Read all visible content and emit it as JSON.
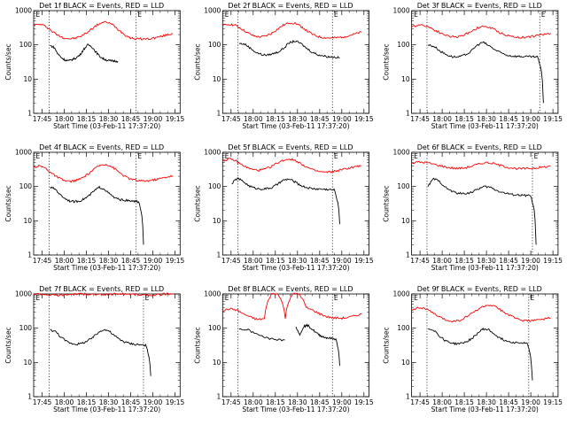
{
  "chart_data": [
    {
      "type": "line",
      "title": "Det 1f BLACK = Events, RED = LLD",
      "xlabel": "Start Time (03-Feb-11 17:37:20)",
      "ylabel": "Counts/sec",
      "y_scale": "log",
      "ylim": [
        1,
        1000
      ],
      "xlim": [
        0,
        40
      ],
      "x_ticks": [
        "17:45",
        "18:00",
        "18:15",
        "18:30",
        "18:45",
        "19:00",
        "19:15"
      ],
      "y_ticks": [
        "1",
        "10",
        "100",
        "1000"
      ],
      "markers": [
        {
          "label": "E",
          "x": 0
        },
        {
          "label": "E",
          "x": 28
        }
      ],
      "series": [
        {
          "color": "#ff0000",
          "y": [
            380,
            400,
            350,
            250,
            190,
            160,
            150,
            158,
            185,
            240,
            330,
            430,
            470,
            390,
            280,
            200,
            160,
            150,
            148,
            150,
            160,
            175,
            195,
            215
          ],
          "x_end": 38
        },
        {
          "color": "#000000",
          "y": [
            95,
            85,
            55,
            42,
            36,
            34,
            38,
            42,
            52,
            75,
            100,
            90,
            65,
            48,
            40,
            36,
            34,
            34,
            33
          ],
          "x_start": 4.5,
          "x_end": 23
        }
      ]
    },
    {
      "type": "line",
      "title": "Det 2f BLACK = Events, RED = LLD",
      "xlabel": "Start Time (03-Feb-11 17:37:20)",
      "ylabel": "Counts/sec",
      "y_scale": "log",
      "ylim": [
        1,
        1000
      ],
      "xlim": [
        0,
        40
      ],
      "x_ticks": [
        "17:45",
        "18:00",
        "18:15",
        "18:30",
        "18:45",
        "19:00",
        "19:15"
      ],
      "y_ticks": [
        "1",
        "10",
        "100",
        "1000"
      ],
      "markers": [
        {
          "label": "E",
          "x": 0
        },
        {
          "label": "E",
          "x": 30
        }
      ],
      "series": [
        {
          "color": "#ff0000",
          "y": [
            360,
            400,
            380,
            300,
            230,
            185,
            170,
            178,
            210,
            280,
            370,
            440,
            430,
            340,
            250,
            195,
            170,
            160,
            158,
            162,
            172,
            190,
            210,
            235
          ],
          "x_end": 38
        },
        {
          "color": "#000000",
          "y": [
            110,
            105,
            80,
            60,
            52,
            50,
            55,
            62,
            80,
            115,
            130,
            110,
            80,
            62,
            52,
            48,
            45,
            44,
            42
          ],
          "x_start": 4.5,
          "x_end": 32
        }
      ]
    },
    {
      "type": "line",
      "title": "Det 3f BLACK = Events, RED = LLD",
      "xlabel": "Start Time (03-Feb-11 17:37:20)",
      "ylabel": "Counts/sec",
      "y_scale": "log",
      "ylim": [
        1,
        1000
      ],
      "xlim": [
        0,
        40
      ],
      "x_ticks": [
        "17:45",
        "18:00",
        "18:15",
        "18:30",
        "18:45",
        "19:00",
        "19:15"
      ],
      "y_ticks": [
        "1",
        "10",
        "100",
        "1000"
      ],
      "markers": [
        {
          "label": "E",
          "x": 0
        },
        {
          "label": "E",
          "x": 35
        }
      ],
      "series": [
        {
          "color": "#ff0000",
          "y": [
            330,
            390,
            360,
            280,
            220,
            180,
            170,
            185,
            240,
            310,
            350,
            300,
            230,
            190,
            170,
            165,
            172,
            185,
            200,
            220
          ],
          "x_end": 38
        },
        {
          "color": "#000000",
          "y": [
            100,
            90,
            65,
            52,
            45,
            44,
            50,
            62,
            95,
            120,
            95,
            72,
            58,
            50,
            47,
            46,
            45,
            45,
            44,
            2
          ],
          "x_start": 4.5,
          "x_end": 36
        }
      ]
    },
    {
      "type": "line",
      "title": "Det 4f BLACK = Events, RED = LLD",
      "xlabel": "Start Time (03-Feb-11 17:37:20)",
      "ylabel": "Counts/sec",
      "y_scale": "log",
      "ylim": [
        1,
        1000
      ],
      "xlim": [
        0,
        40
      ],
      "x_ticks": [
        "17:45",
        "18:00",
        "18:15",
        "18:30",
        "18:45",
        "19:00",
        "19:15"
      ],
      "y_ticks": [
        "1",
        "10",
        "100",
        "1000"
      ],
      "markers": [
        {
          "label": "E",
          "x": 0
        },
        {
          "label": "E",
          "x": 28
        }
      ],
      "series": [
        {
          "color": "#ff0000",
          "y": [
            370,
            400,
            340,
            240,
            180,
            150,
            140,
            150,
            175,
            230,
            320,
            420,
            450,
            370,
            270,
            200,
            165,
            150,
            145,
            148,
            158,
            172,
            190,
            205
          ],
          "x_end": 38
        },
        {
          "color": "#000000",
          "y": [
            95,
            85,
            58,
            45,
            38,
            36,
            38,
            44,
            55,
            75,
            95,
            85,
            62,
            48,
            42,
            40,
            38,
            37,
            36,
            2
          ],
          "x_start": 4.5,
          "x_end": 30
        }
      ]
    },
    {
      "type": "line",
      "title": "Det 5f BLACK = Events, RED = LLD",
      "xlabel": "Start Time (03-Feb-11 17:37:20)",
      "ylabel": "Counts/sec",
      "y_scale": "log",
      "ylim": [
        1,
        1000
      ],
      "xlim": [
        0,
        40
      ],
      "x_ticks": [
        "17:45",
        "18:00",
        "18:15",
        "18:30",
        "18:45",
        "19:00",
        "19:15"
      ],
      "y_ticks": [
        "1",
        "10",
        "100",
        "1000"
      ],
      "markers": [
        {
          "label": "E",
          "x": 0
        },
        {
          "label": "E",
          "x": 30
        }
      ],
      "series": [
        {
          "color": "#ff0000",
          "y": [
            560,
            640,
            580,
            450,
            360,
            310,
            300,
            320,
            380,
            480,
            580,
            640,
            580,
            460,
            360,
            300,
            270,
            260,
            270,
            290,
            320,
            350,
            380,
            410
          ],
          "x_end": 38
        },
        {
          "color": "#000000",
          "y": [
            120,
            175,
            140,
            105,
            90,
            85,
            86,
            92,
            115,
            150,
            165,
            140,
            110,
            95,
            88,
            85,
            84,
            82,
            80,
            8
          ],
          "x_start": 2.5,
          "x_end": 32
        }
      ]
    },
    {
      "type": "line",
      "title": "Det 6f BLACK = Events, RED = LLD",
      "xlabel": "Start Time (03-Feb-11 17:37:20)",
      "ylabel": "Counts/sec",
      "y_scale": "log",
      "ylim": [
        1,
        1000
      ],
      "xlim": [
        0,
        40
      ],
      "x_ticks": [
        "17:45",
        "18:00",
        "18:15",
        "18:30",
        "18:45",
        "19:00",
        "19:15"
      ],
      "y_ticks": [
        "1",
        "10",
        "100",
        "1000"
      ],
      "markers": [
        {
          "label": "E",
          "x": 0
        },
        {
          "label": "E",
          "x": 33
        }
      ],
      "series": [
        {
          "color": "#ff0000",
          "y": [
            480,
            520,
            500,
            450,
            400,
            360,
            340,
            345,
            380,
            440,
            500,
            480,
            420,
            370,
            340,
            330,
            335,
            350,
            370,
            390
          ],
          "x_end": 38
        },
        {
          "color": "#000000",
          "y": [
            100,
            170,
            140,
            95,
            75,
            65,
            62,
            64,
            72,
            88,
            100,
            95,
            78,
            68,
            62,
            58,
            56,
            55,
            54,
            2
          ],
          "x_start": 4.5,
          "x_end": 34
        }
      ]
    },
    {
      "type": "line",
      "title": "Det 7f BLACK = Events, RED = LLD",
      "xlabel": "Start Time (03-Feb-11 17:37:20)",
      "ylabel": "Counts/sec",
      "y_scale": "log",
      "ylim": [
        1,
        1000
      ],
      "xlim": [
        0,
        40
      ],
      "x_ticks": [
        "17:45",
        "18:00",
        "18:15",
        "18:30",
        "18:45",
        "19:00",
        "19:15"
      ],
      "y_ticks": [
        "1",
        "10",
        "100",
        "1000"
      ],
      "markers": [
        {
          "label": "E",
          "x": 0
        },
        {
          "label": "E",
          "x": 30
        }
      ],
      "series": [
        {
          "color": "#ff0000",
          "y": [
            1000,
            1000,
            950,
            920,
            930,
            980,
            1000,
            1000,
            990,
            940,
            960,
            1000,
            1000,
            1000,
            970,
            930,
            920,
            950,
            1000,
            1000
          ],
          "x_end": 38
        },
        {
          "color": "#000000",
          "y": [
            90,
            80,
            55,
            42,
            36,
            34,
            36,
            42,
            52,
            72,
            92,
            85,
            62,
            48,
            40,
            36,
            34,
            33,
            32,
            4
          ],
          "x_start": 4.5,
          "x_end": 32
        }
      ]
    },
    {
      "type": "line",
      "title": "Det 8f BLACK = Events, RED = LLD",
      "xlabel": "Start Time (03-Feb-11 17:37:20)",
      "ylabel": "Counts/sec",
      "y_scale": "log",
      "ylim": [
        1,
        1000
      ],
      "xlim": [
        0,
        40
      ],
      "x_ticks": [
        "17:45",
        "18:00",
        "18:15",
        "18:30",
        "18:45",
        "19:00",
        "19:15"
      ],
      "y_ticks": [
        "1",
        "10",
        "100",
        "1000"
      ],
      "markers": [
        {
          "label": "E",
          "x": 0
        },
        {
          "label": "E",
          "x": 30
        }
      ],
      "series": [
        {
          "color": "#ff0000",
          "y": [
            320,
            370,
            340,
            260,
            210,
            180,
            190,
            1000,
            1000,
            200,
            1000,
            1000,
            400,
            330,
            260,
            215,
            200,
            195,
            205,
            230,
            260
          ],
          "x_end": 38
        },
        {
          "color": "#000000",
          "y": [
            95,
            88,
            65,
            52,
            46,
            45
          ],
          "x_start": 4.5,
          "x_end": 17
        },
        {
          "color": "#000000",
          "y": [
            110,
            60,
            115,
            120,
            95,
            75,
            62,
            55,
            52,
            50,
            48,
            8
          ],
          "x_start": 20,
          "x_end": 32
        }
      ]
    },
    {
      "type": "line",
      "title": "Det 9f BLACK = Events, RED = LLD",
      "xlabel": "Start Time (03-Feb-11 17:37:20)",
      "ylabel": "Counts/sec",
      "y_scale": "log",
      "ylim": [
        1,
        1000
      ],
      "xlim": [
        0,
        40
      ],
      "x_ticks": [
        "17:45",
        "18:00",
        "18:15",
        "18:30",
        "18:45",
        "19:00",
        "19:15"
      ],
      "y_ticks": [
        "1",
        "10",
        "100",
        "1000"
      ],
      "markers": [
        {
          "label": "E",
          "x": 0
        },
        {
          "label": "E",
          "x": 32
        }
      ],
      "series": [
        {
          "color": "#ff0000",
          "y": [
            350,
            400,
            370,
            280,
            210,
            170,
            160,
            170,
            220,
            300,
            400,
            480,
            420,
            320,
            240,
            190,
            170,
            165,
            170,
            185,
            205
          ],
          "x_end": 38
        },
        {
          "color": "#000000",
          "y": [
            95,
            90,
            60,
            45,
            38,
            35,
            36,
            40,
            50,
            70,
            95,
            90,
            68,
            52,
            44,
            40,
            38,
            37,
            36,
            3
          ],
          "x_start": 4.5,
          "x_end": 33
        }
      ]
    }
  ]
}
